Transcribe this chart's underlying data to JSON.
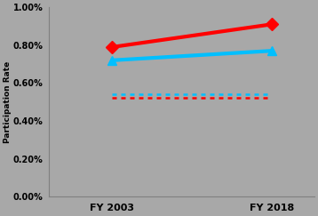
{
  "x_values": [
    2003,
    2018
  ],
  "male_values": [
    0.0079,
    0.0091
  ],
  "female_values": [
    0.0072,
    0.0077
  ],
  "clf_cyan": 0.0054,
  "clf_red": 0.0052,
  "male_color": "#FF0000",
  "female_color": "#00BFFF",
  "clf_color_cyan": "#00BFFF",
  "clf_color_red": "#FF0000",
  "x_tick_labels": [
    "FY 2003",
    "FY 2018"
  ],
  "ylabel": "Participation Rate",
  "ylim": [
    0.0,
    0.01
  ],
  "yticks": [
    0.0,
    0.002,
    0.004,
    0.006,
    0.008,
    0.01
  ],
  "background_color": "#A8A8A8"
}
